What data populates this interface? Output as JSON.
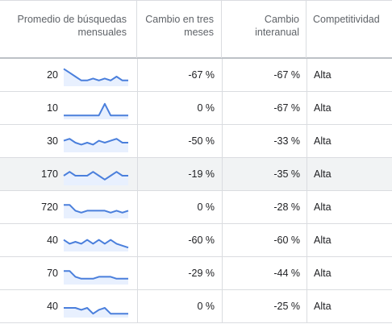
{
  "header": {
    "avg_searches": "Promedio de búsquedas mensuales",
    "three_month_change": "Cambio en tres meses",
    "yoy_change": "Cambio interanual",
    "competition": "Competitividad"
  },
  "rows": [
    {
      "avg": "20",
      "three_month": "-67 %",
      "yoy": "-67 %",
      "competition": "Alta",
      "trend": [
        9,
        7,
        5,
        3,
        3,
        4,
        3,
        4,
        3,
        5,
        3,
        3
      ]
    },
    {
      "avg": "10",
      "three_month": "0 %",
      "yoy": "-67 %",
      "competition": "Alta",
      "trend": [
        2,
        2,
        2,
        2,
        2,
        2,
        2,
        8,
        2,
        2,
        2,
        2
      ]
    },
    {
      "avg": "30",
      "three_month": "-50 %",
      "yoy": "-33 %",
      "competition": "Alta",
      "trend": [
        6,
        7,
        5,
        4,
        5,
        4,
        6,
        5,
        6,
        7,
        5,
        5
      ]
    },
    {
      "avg": "170",
      "three_month": "-19 %",
      "yoy": "-35 %",
      "competition": "Alta",
      "trend": [
        5,
        7,
        5,
        5,
        5,
        7,
        5,
        3,
        5,
        7,
        5,
        5
      ]
    },
    {
      "avg": "720",
      "three_month": "0 %",
      "yoy": "-28 %",
      "competition": "Alta",
      "trend": [
        7,
        7,
        4,
        3,
        4,
        4,
        4,
        4,
        3,
        4,
        3,
        4
      ]
    },
    {
      "avg": "40",
      "three_month": "-60 %",
      "yoy": "-60 %",
      "competition": "Alta",
      "trend": [
        6,
        4,
        5,
        4,
        6,
        4,
        6,
        4,
        6,
        4,
        3,
        2
      ]
    },
    {
      "avg": "70",
      "three_month": "-29 %",
      "yoy": "-44 %",
      "competition": "Alta",
      "trend": [
        7,
        7,
        4,
        3,
        3,
        3,
        4,
        4,
        4,
        3,
        3,
        3
      ]
    },
    {
      "avg": "40",
      "three_month": "0 %",
      "yoy": "-25 %",
      "competition": "Alta",
      "trend": [
        5,
        5,
        5,
        4,
        5,
        2,
        4,
        5,
        2,
        2,
        2,
        2
      ]
    }
  ],
  "highlighted_row": 3,
  "colors": {
    "sparkline": "#4a7fdc",
    "sparkline_fill": "#e8f0fe",
    "highlight": "#f1f3f4"
  }
}
